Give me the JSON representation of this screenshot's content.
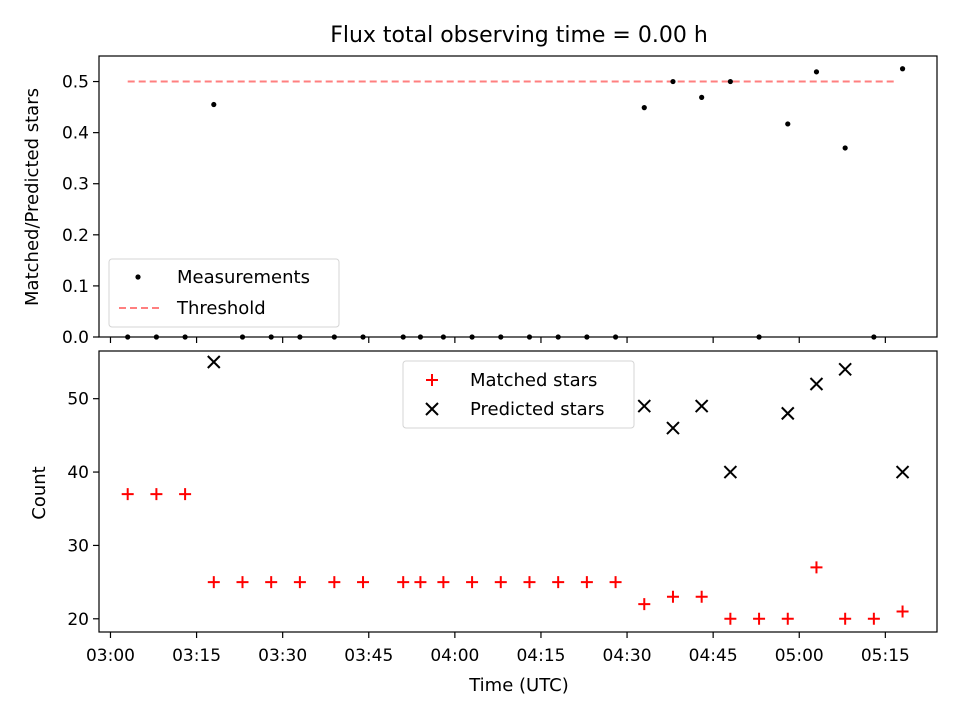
{
  "title": "Flux total observing time = 0.00 h",
  "chart_data": [
    {
      "type": "scatter",
      "ylabel": "Matched/Predicted stars",
      "ylim": [
        0,
        0.55
      ],
      "yticks": [
        "0.0",
        "0.1",
        "0.2",
        "0.3",
        "0.4",
        "0.5"
      ],
      "legend": "lower-left",
      "series": [
        {
          "name": "Measurements",
          "marker": "dot",
          "color": "#000000",
          "x": [
            "03:03",
            "03:08",
            "03:13",
            "03:18",
            "03:23",
            "03:28",
            "03:33",
            "03:39",
            "03:44",
            "03:51",
            "03:54",
            "03:58",
            "04:03",
            "04:08",
            "04:13",
            "04:18",
            "04:23",
            "04:28",
            "04:33",
            "04:38",
            "04:43",
            "04:48",
            "04:53",
            "04:58",
            "05:03",
            "05:08",
            "05:13",
            "05:18"
          ],
          "values": [
            0,
            0,
            0,
            0.455,
            0,
            0,
            0,
            0,
            0,
            0,
            0,
            0,
            0,
            0,
            0,
            0,
            0,
            0,
            0.449,
            0.5,
            0.469,
            0.5,
            0,
            0.417,
            0.519,
            0.37,
            0,
            0.525
          ]
        },
        {
          "name": "Threshold",
          "style": "dashed",
          "color": "#ff7f7f",
          "x": [
            "03:03",
            "05:17"
          ],
          "values": [
            0.5,
            0.5
          ]
        }
      ]
    },
    {
      "type": "scatter",
      "xlabel": "Time (UTC)",
      "ylabel": "Count",
      "ylim": [
        18.2,
        56.5
      ],
      "yticks": [
        "20",
        "30",
        "40",
        "50"
      ],
      "xticks": [
        "03:00",
        "03:15",
        "03:30",
        "03:45",
        "04:00",
        "04:15",
        "04:30",
        "04:45",
        "05:00",
        "05:15"
      ],
      "legend": "upper-center",
      "series": [
        {
          "name": "Matched stars",
          "marker": "plus",
          "color": "#ff0000",
          "x": [
            "03:03",
            "03:08",
            "03:13",
            "03:18",
            "03:23",
            "03:28",
            "03:33",
            "03:39",
            "03:44",
            "03:51",
            "03:54",
            "03:58",
            "04:03",
            "04:08",
            "04:13",
            "04:18",
            "04:23",
            "04:28",
            "04:33",
            "04:38",
            "04:43",
            "04:48",
            "04:53",
            "04:58",
            "05:03",
            "05:08",
            "05:13",
            "05:18"
          ],
          "values": [
            37,
            37,
            37,
            25,
            25,
            25,
            25,
            25,
            25,
            25,
            25,
            25,
            25,
            25,
            25,
            25,
            25,
            25,
            22,
            23,
            23,
            20,
            20,
            20,
            27,
            20,
            20,
            21
          ]
        },
        {
          "name": "Predicted stars",
          "marker": "x",
          "color": "#000000",
          "x": [
            "03:18",
            "04:33",
            "04:38",
            "04:43",
            "04:48",
            "04:58",
            "05:03",
            "05:08",
            "05:18"
          ],
          "values": [
            55,
            49,
            46,
            49,
            40,
            48,
            52,
            54,
            40
          ]
        }
      ]
    }
  ]
}
